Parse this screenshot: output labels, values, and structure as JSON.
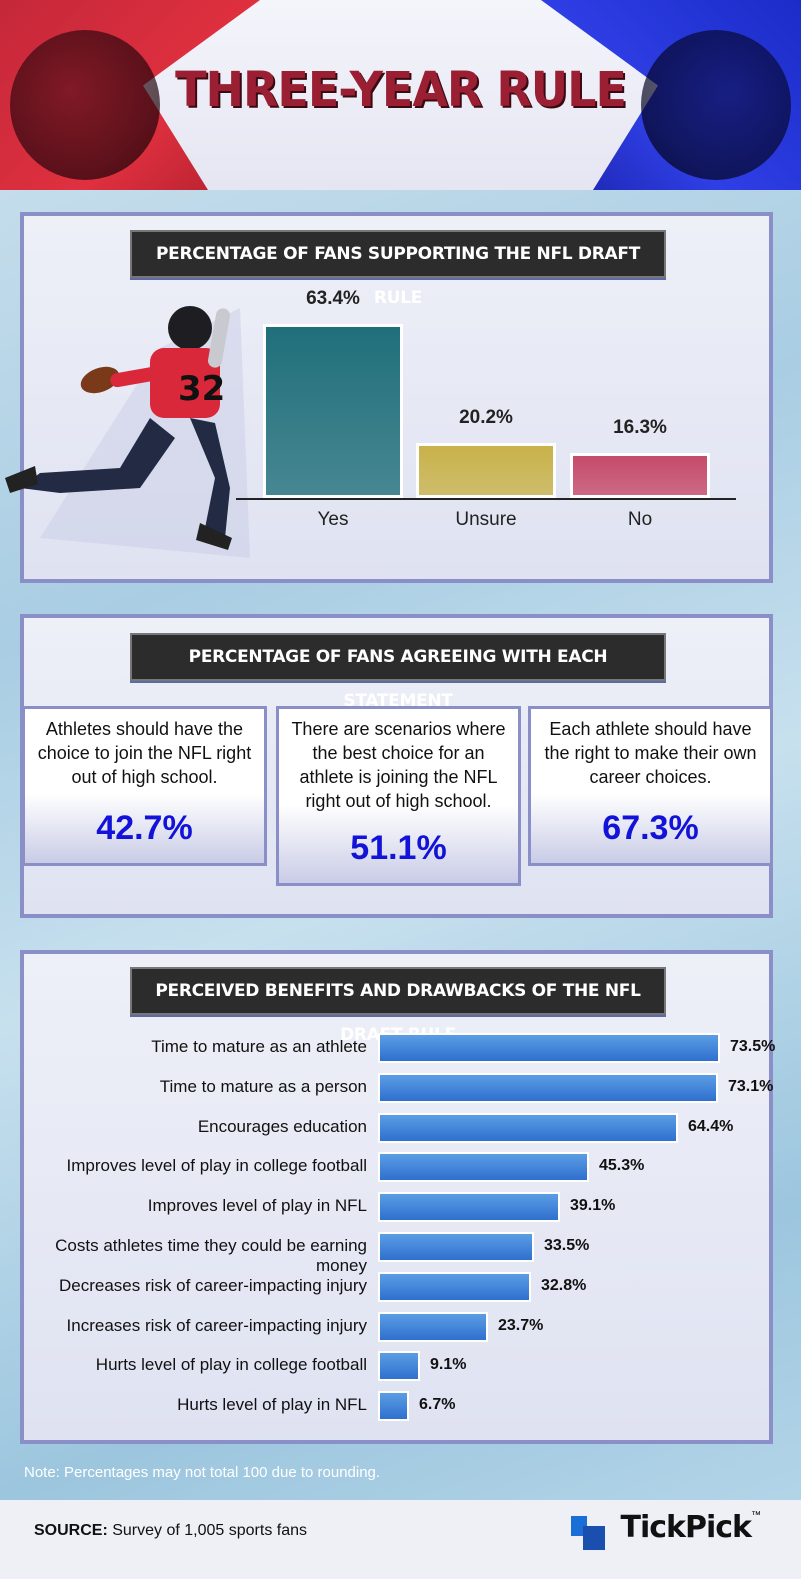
{
  "header": {
    "title": "THREE-YEAR RULE"
  },
  "colors": {
    "yes": "#1f6f7a",
    "unsure": "#c9b24a",
    "no": "#c64a6a",
    "percent_blue": "#1212d8",
    "bar_blue": "#3a7fd8"
  },
  "section1": {
    "heading": "PERCENTAGE OF FANS SUPPORTING THE NFL DRAFT RULE"
  },
  "section2": {
    "heading": "PERCENTAGE OF FANS AGREEING WITH EACH STATEMENT",
    "cards": [
      {
        "text": "Athletes should have the choice to join the NFL right out of high school.",
        "value": "42.7%"
      },
      {
        "text": "There are scenarios where the best choice for an athlete is joining the NFL right out of high school.",
        "value": "51.1%"
      },
      {
        "text": "Each athlete should have the right to make their own career choices.",
        "value": "67.3%"
      }
    ]
  },
  "section3": {
    "heading": "PERCEIVED BENEFITS AND DRAWBACKS OF THE NFL DRAFT RULE"
  },
  "chart_data": [
    {
      "type": "bar",
      "title": "PERCENTAGE OF FANS SUPPORTING THE NFL DRAFT RULE",
      "categories": [
        "Yes",
        "Unsure",
        "No"
      ],
      "values": [
        63.4,
        20.2,
        16.3
      ],
      "value_labels": [
        "63.4%",
        "20.2%",
        "16.3%"
      ],
      "ylim": [
        0,
        70
      ]
    },
    {
      "type": "bar",
      "orientation": "horizontal",
      "title": "PERCEIVED BENEFITS AND DRAWBACKS OF THE NFL DRAFT RULE",
      "categories": [
        "Time to mature as an athlete",
        "Time to mature as a person",
        "Encourages education",
        "Improves level of play in college football",
        "Improves level of play in NFL",
        "Costs athletes time they could be earning money",
        "Decreases risk of career-impacting injury",
        "Increases risk of career-impacting injury",
        "Hurts level of play in college football",
        "Hurts level of play in NFL"
      ],
      "values": [
        73.5,
        73.1,
        64.4,
        45.3,
        39.1,
        33.5,
        32.8,
        23.7,
        9.1,
        6.7
      ],
      "value_labels": [
        "73.5%",
        "73.1%",
        "64.4%",
        "45.3%",
        "39.1%",
        "33.5%",
        "32.8%",
        "23.7%",
        "9.1%",
        "6.7%"
      ],
      "xlim": [
        0,
        73.5
      ]
    }
  ],
  "note": "Note: Percentages may not total 100 due to rounding.",
  "footer": {
    "source_label": "SOURCE:",
    "source_text": " Survey of 1,005 sports fans",
    "logo": "TickPick",
    "logo_tm": "™"
  }
}
